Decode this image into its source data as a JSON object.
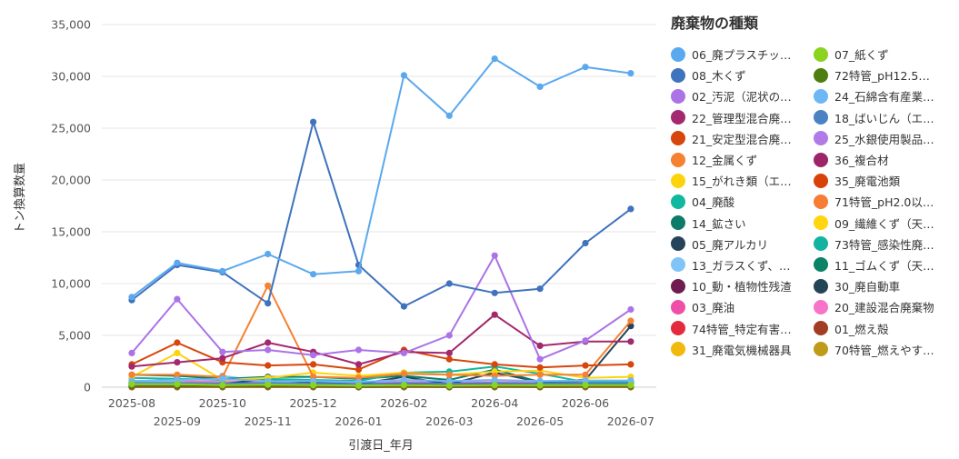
{
  "chart_data": {
    "type": "line",
    "xlabel": "引渡日_年月",
    "ylabel": "トン換算数量",
    "ylim": [
      0,
      35000
    ],
    "yticks": [
      0,
      5000,
      10000,
      15000,
      20000,
      25000,
      30000,
      35000
    ],
    "ytick_labels": [
      "0",
      "5,000",
      "10,000",
      "15,000",
      "20,000",
      "25,000",
      "30,000",
      "35,000"
    ],
    "x": [
      "2025-08",
      "2025-09",
      "2025-10",
      "2025-11",
      "2025-12",
      "2026-01",
      "2026-02",
      "2026-03",
      "2026-04",
      "2026-05",
      "2026-06",
      "2026-07"
    ],
    "xtick_top": [
      "2025-08",
      "2025-10",
      "2025-12",
      "2026-02",
      "2026-04",
      "2026-06"
    ],
    "xtick_bottom": [
      "2025-09",
      "2025-11",
      "2026-01",
      "2026-03",
      "2026-05",
      "2026-07"
    ],
    "grid": true,
    "legend_position": "right",
    "legend_title": "廃棄物の種類",
    "series": [
      {
        "name": "06_廃プラスチッ…",
        "color": "#5aa9ee",
        "values": [
          8700,
          12000,
          11200,
          12850,
          10900,
          11200,
          30100,
          26200,
          31700,
          29000,
          30900,
          30300
        ]
      },
      {
        "name": "07_紙くず",
        "color": "#8ad31f",
        "values": [
          300,
          300,
          200,
          250,
          200,
          150,
          200,
          150,
          200,
          180,
          200,
          200
        ]
      },
      {
        "name": "08_木くず",
        "color": "#3f73bd",
        "values": [
          8400,
          11800,
          11100,
          8100,
          25600,
          11800,
          7800,
          10000,
          9100,
          9500,
          13900,
          17200
        ]
      },
      {
        "name": "72特管_pH12.5…",
        "color": "#4e7e0f",
        "values": [
          100,
          100,
          80,
          100,
          80,
          60,
          80,
          60,
          80,
          70,
          80,
          80
        ]
      },
      {
        "name": "02_汚泥（泥状の…",
        "color": "#ab73e6",
        "values": [
          3300,
          8500,
          3400,
          3600,
          3100,
          3600,
          3300,
          5000,
          12700,
          2700,
          4500,
          7500
        ]
      },
      {
        "name": "24_石綿含有産業…",
        "color": "#6eb7f5",
        "values": [
          600,
          700,
          800,
          600,
          600,
          500,
          700,
          600,
          700,
          600,
          650,
          650
        ]
      },
      {
        "name": "22_管理型混合廃…",
        "color": "#a3286e",
        "values": [
          2000,
          2400,
          2800,
          4300,
          3400,
          2200,
          3400,
          3300,
          7000,
          4000,
          4400,
          4400
        ]
      },
      {
        "name": "18_ばいじん（エ…",
        "color": "#4b82c4",
        "values": [
          400,
          400,
          350,
          400,
          350,
          300,
          400,
          350,
          400,
          350,
          380,
          380
        ]
      },
      {
        "name": "21_安定型混合廃…",
        "color": "#d7460c",
        "values": [
          2200,
          4300,
          2400,
          2100,
          2200,
          1700,
          3600,
          2700,
          2200,
          1900,
          2100,
          2200
        ]
      },
      {
        "name": "25_水銀使用製品…",
        "color": "#b07be8",
        "values": [
          150,
          150,
          120,
          150,
          120,
          100,
          130,
          110,
          130,
          120,
          130,
          130
        ]
      },
      {
        "name": "12_金属くず",
        "color": "#f58131",
        "values": [
          1200,
          1200,
          1000,
          9800,
          1000,
          900,
          1300,
          1200,
          1100,
          1200,
          1200,
          6400
        ]
      },
      {
        "name": "36_複合材",
        "color": "#9c2469",
        "values": [
          250,
          300,
          250,
          300,
          250,
          200,
          300,
          250,
          280,
          260,
          270,
          270
        ]
      },
      {
        "name": "15_がれき類（エ…",
        "color": "#fdd30e",
        "values": [
          1000,
          3300,
          700,
          900,
          1400,
          1100,
          1400,
          1200,
          1500,
          1600,
          900,
          1000
        ]
      },
      {
        "name": "35_廃電池類",
        "color": "#d9410b",
        "values": [
          80,
          80,
          70,
          80,
          70,
          60,
          70,
          60,
          70,
          65,
          70,
          70
        ]
      },
      {
        "name": "04_廃酸",
        "color": "#10b89d",
        "values": [
          900,
          800,
          700,
          800,
          700,
          600,
          1400,
          1500,
          2000,
          1300,
          500,
          500
        ]
      },
      {
        "name": "71特管_pH2.0以…",
        "color": "#f77c34",
        "values": [
          60,
          60,
          50,
          60,
          50,
          40,
          50,
          45,
          50,
          48,
          50,
          50
        ]
      },
      {
        "name": "14_鉱さい",
        "color": "#0c7b67",
        "values": [
          1200,
          1100,
          800,
          1000,
          1000,
          800,
          1100,
          700,
          1700,
          500,
          600,
          600
        ]
      },
      {
        "name": "09_繊維くず（天…",
        "color": "#ffd50f",
        "values": [
          150,
          150,
          130,
          150,
          130,
          110,
          140,
          120,
          140,
          130,
          140,
          140
        ]
      },
      {
        "name": "05_廃アルカリ",
        "color": "#254459",
        "values": [
          400,
          350,
          300,
          800,
          400,
          300,
          1000,
          300,
          1400,
          500,
          700,
          5900
        ]
      },
      {
        "name": "73特管_感染性廃…",
        "color": "#14b3a1",
        "values": [
          200,
          200,
          180,
          200,
          180,
          160,
          190,
          170,
          190,
          180,
          185,
          185
        ]
      },
      {
        "name": "13_ガラスくず、…",
        "color": "#7fc5f7",
        "values": [
          500,
          600,
          1100,
          500,
          400,
          300,
          400,
          300,
          400,
          300,
          350,
          350
        ]
      },
      {
        "name": "11_ゴムくず（天…",
        "color": "#0c8266",
        "values": [
          100,
          100,
          90,
          100,
          90,
          80,
          90,
          80,
          90,
          85,
          88,
          88
        ]
      },
      {
        "name": "10_動・植物性残渣",
        "color": "#711c50",
        "values": [
          300,
          250,
          200,
          250,
          200,
          180,
          220,
          200,
          230,
          210,
          220,
          220
        ]
      },
      {
        "name": "30_廃自動車",
        "color": "#244557",
        "values": [
          50,
          50,
          40,
          50,
          40,
          30,
          40,
          35,
          40,
          38,
          40,
          40
        ]
      },
      {
        "name": "03_廃油",
        "color": "#f04fa7",
        "values": [
          400,
          400,
          350,
          400,
          350,
          300,
          380,
          330,
          380,
          340,
          360,
          360
        ]
      },
      {
        "name": "20_建設混合廃棄物",
        "color": "#f774c8",
        "values": [
          600,
          600,
          500,
          600,
          500,
          400,
          500,
          450,
          500,
          460,
          480,
          480
        ]
      },
      {
        "name": "74特管_特定有害…",
        "color": "#e42b3d",
        "values": [
          20,
          20,
          15,
          20,
          15,
          10,
          15,
          12,
          15,
          13,
          14,
          14
        ]
      },
      {
        "name": "01_燃え殻",
        "color": "#a23d24",
        "values": [
          100,
          100,
          90,
          100,
          90,
          80,
          90,
          85,
          90,
          88,
          89,
          89
        ]
      },
      {
        "name": "31_廃電気機械器具",
        "color": "#f1b90d",
        "values": [
          80,
          80,
          70,
          80,
          70,
          60,
          70,
          65,
          70,
          68,
          69,
          69
        ]
      },
      {
        "name": "70特管_燃えやす…",
        "color": "#c09b1a",
        "values": [
          10,
          10,
          8,
          10,
          8,
          6,
          8,
          7,
          8,
          7,
          8,
          8
        ]
      }
    ]
  }
}
